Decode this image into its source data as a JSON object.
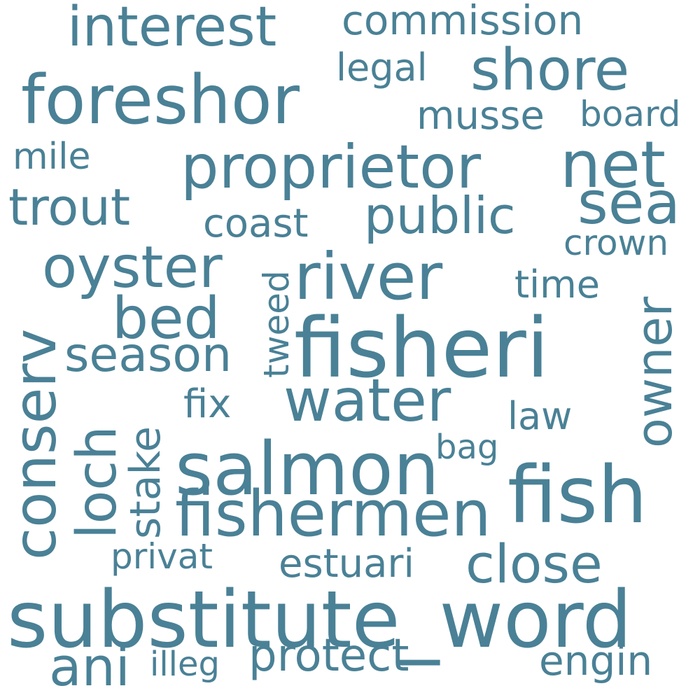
{
  "word_cloud": {
    "color": "#4a8196",
    "background": "#ffffff",
    "words": [
      {
        "text": "substitute_word",
        "weight": 1.0,
        "vertical": false
      },
      {
        "text": "fisheri",
        "weight": 0.92,
        "vertical": false
      },
      {
        "text": "salmon",
        "weight": 0.85,
        "vertical": false
      },
      {
        "text": "fish",
        "weight": 0.84,
        "vertical": false
      },
      {
        "text": "river",
        "weight": 0.78,
        "vertical": false
      },
      {
        "text": "foreshor",
        "weight": 0.76,
        "vertical": false
      },
      {
        "text": "fishermen",
        "weight": 0.72,
        "vertical": false
      },
      {
        "text": "proprietor",
        "weight": 0.7,
        "vertical": false
      },
      {
        "text": "water",
        "weight": 0.7,
        "vertical": false
      },
      {
        "text": "net",
        "weight": 0.7,
        "vertical": false
      },
      {
        "text": "conserv",
        "weight": 0.68,
        "vertical": true
      },
      {
        "text": "oyster",
        "weight": 0.66,
        "vertical": false
      },
      {
        "text": "bed",
        "weight": 0.66,
        "vertical": false
      },
      {
        "text": "shore",
        "weight": 0.64,
        "vertical": false
      },
      {
        "text": "sea",
        "weight": 0.62,
        "vertical": false
      },
      {
        "text": "interest",
        "weight": 0.62,
        "vertical": false
      },
      {
        "text": "loch",
        "weight": 0.6,
        "vertical": true
      },
      {
        "text": "close",
        "weight": 0.58,
        "vertical": false
      },
      {
        "text": "ani",
        "weight": 0.58,
        "vertical": false
      },
      {
        "text": "trout",
        "weight": 0.57,
        "vertical": false
      },
      {
        "text": "public",
        "weight": 0.57,
        "vertical": false
      },
      {
        "text": "owner",
        "weight": 0.56,
        "vertical": true
      },
      {
        "text": "season",
        "weight": 0.54,
        "vertical": false
      },
      {
        "text": "protect",
        "weight": 0.52,
        "vertical": false
      },
      {
        "text": "stake",
        "weight": 0.5,
        "vertical": true
      },
      {
        "text": "commission",
        "weight": 0.48,
        "vertical": false
      },
      {
        "text": "engin",
        "weight": 0.45,
        "vertical": false
      },
      {
        "text": "estuari",
        "weight": 0.44,
        "vertical": false
      },
      {
        "text": "coast",
        "weight": 0.44,
        "vertical": false
      },
      {
        "text": "fix",
        "weight": 0.44,
        "vertical": false
      },
      {
        "text": "musse",
        "weight": 0.44,
        "vertical": false
      },
      {
        "text": "legal",
        "weight": 0.43,
        "vertical": false
      },
      {
        "text": "time",
        "weight": 0.42,
        "vertical": false
      },
      {
        "text": "law",
        "weight": 0.42,
        "vertical": false
      },
      {
        "text": "mile",
        "weight": 0.41,
        "vertical": false
      },
      {
        "text": "board",
        "weight": 0.4,
        "vertical": false
      },
      {
        "text": "tweed",
        "weight": 0.39,
        "vertical": true
      },
      {
        "text": "privat",
        "weight": 0.38,
        "vertical": false
      },
      {
        "text": "crown",
        "weight": 0.38,
        "vertical": false
      },
      {
        "text": "illeg",
        "weight": 0.37,
        "vertical": false
      },
      {
        "text": "bag",
        "weight": 0.36,
        "vertical": false
      }
    ]
  }
}
